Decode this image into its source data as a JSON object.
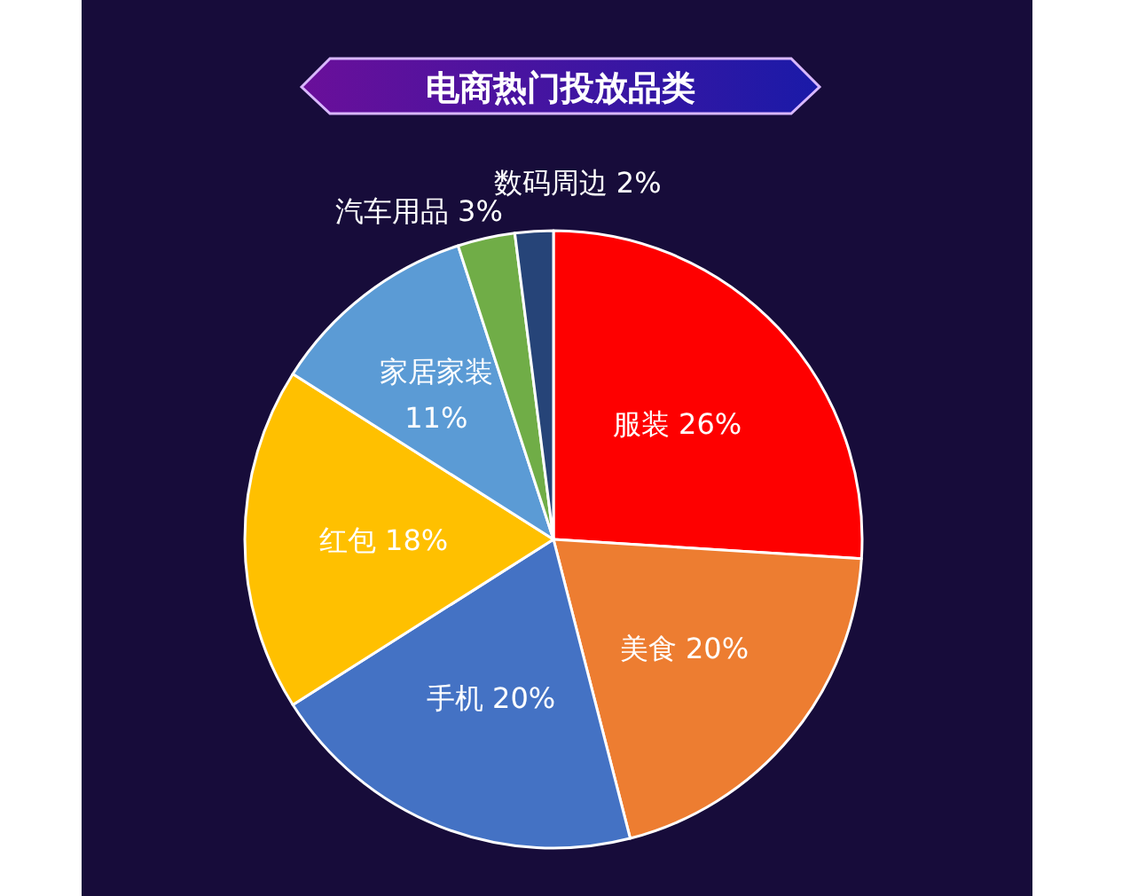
{
  "chart_data": {
    "type": "pie",
    "title": "电商热门投放品类",
    "categories": [
      "服装",
      "美食",
      "手机",
      "红包",
      "家居家装",
      "汽车用品",
      "数码周边"
    ],
    "values": [
      26,
      20,
      20,
      18,
      11,
      3,
      2
    ],
    "colors": [
      "#fe0000",
      "#ed7d31",
      "#4472c4",
      "#ffc000",
      "#5b9bd5",
      "#70ad47",
      "#264478"
    ],
    "value_labels": [
      "26%",
      "20%",
      "20%",
      "18%",
      "11%",
      "3%",
      "2%"
    ]
  }
}
